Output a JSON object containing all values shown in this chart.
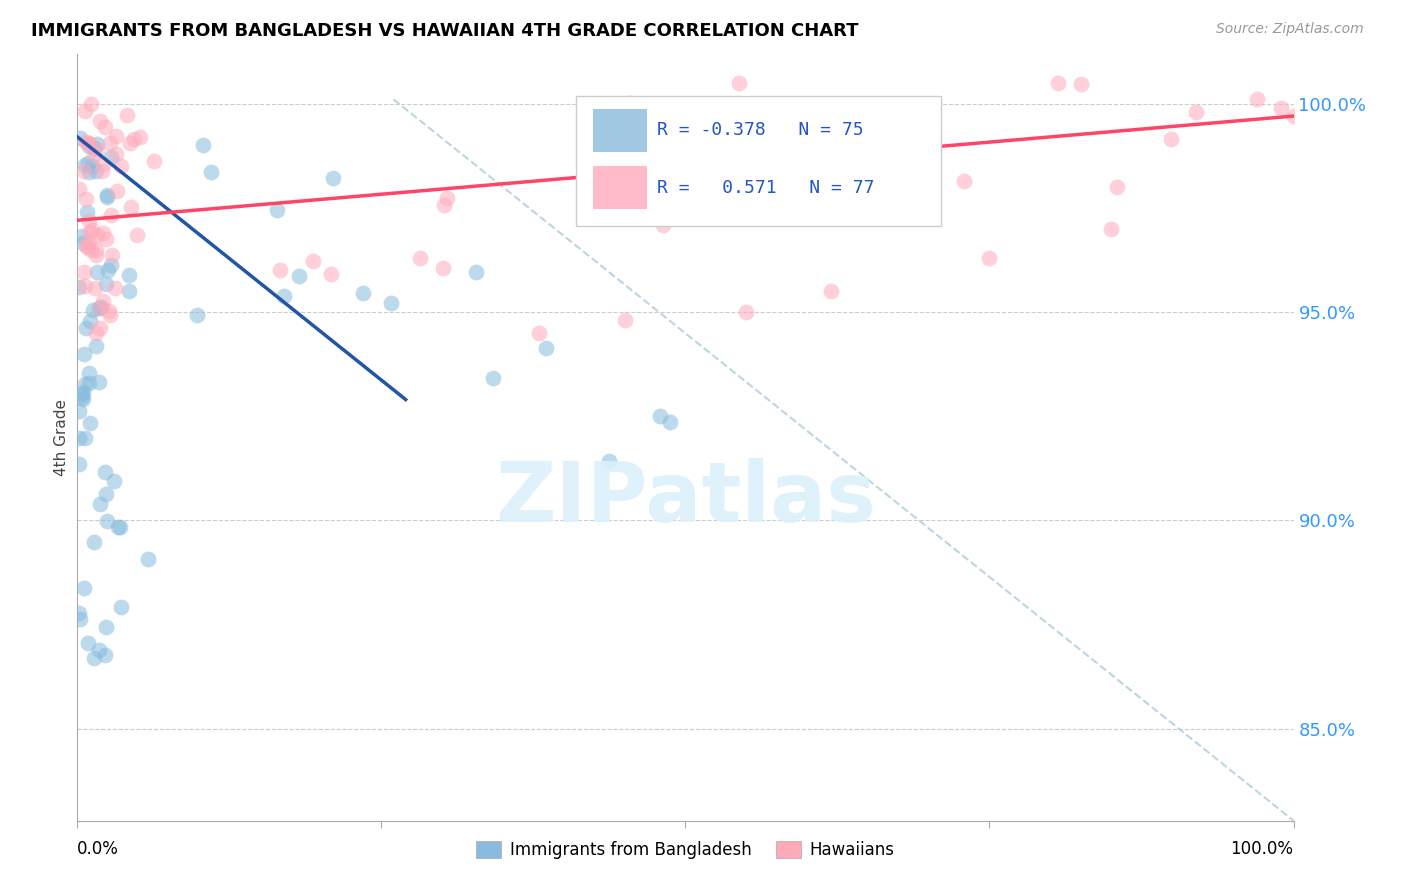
{
  "title": "IMMIGRANTS FROM BANGLADESH VS HAWAIIAN 4TH GRADE CORRELATION CHART",
  "source": "Source: ZipAtlas.com",
  "ylabel": "4th Grade",
  "legend_label_blue": "Immigrants from Bangladesh",
  "legend_label_pink": "Hawaiians",
  "R_blue": -0.378,
  "N_blue": 75,
  "R_pink": 0.571,
  "N_pink": 77,
  "blue_color": "#88BBDD",
  "pink_color": "#FFAABB",
  "blue_line_color": "#2255AA",
  "pink_line_color": "#FF4466",
  "diag_color": "#AACCDD",
  "watermark": "ZIPatlas",
  "xlim": [
    0.0,
    1.0
  ],
  "ylim": [
    0.828,
    1.012
  ],
  "yticks": [
    1.0,
    0.95,
    0.9,
    0.85
  ],
  "ytick_labels": [
    "100.0%",
    "95.0%",
    "90.0%",
    "85.0%"
  ],
  "blue_line_x": [
    0.0,
    0.27
  ],
  "blue_line_y": [
    0.992,
    0.929
  ],
  "pink_line_x": [
    0.0,
    1.0
  ],
  "pink_line_y": [
    0.972,
    0.997
  ],
  "diag_line_x": [
    0.26,
    1.0
  ],
  "diag_line_y": [
    1.001,
    0.828
  ]
}
